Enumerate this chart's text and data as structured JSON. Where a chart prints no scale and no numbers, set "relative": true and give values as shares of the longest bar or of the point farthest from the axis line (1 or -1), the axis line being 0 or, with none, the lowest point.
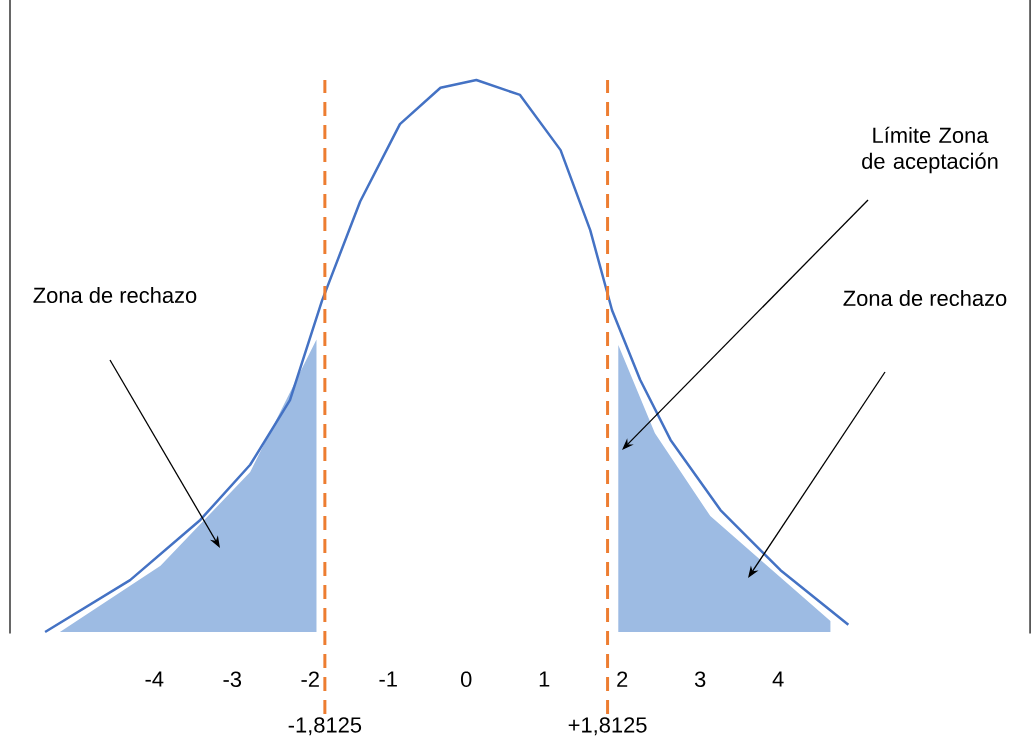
{
  "chart_data": {
    "type": "line",
    "relative": true,
    "xlim": [
      -5.85,
      7.23
    ],
    "xticks": [
      -4,
      -3,
      -2,
      -1,
      0,
      1,
      2,
      3,
      4
    ],
    "marker": "none",
    "series": [
      {
        "type": "area",
        "color": "#9dbbe3",
        "x": [
          -5.21,
          -3.92,
          -2.77,
          -1.92,
          -1.92
        ],
        "values": [
          0,
          0.12,
          0.29,
          0.53,
          0
        ]
      },
      {
        "type": "area",
        "color": "#9dbbe3",
        "x": [
          1.95,
          1.95,
          2.42,
          3.13,
          4.67
        ],
        "values": [
          0,
          0.52,
          0.36,
          0.21,
          0.02
        ]
      },
      {
        "color": "#4472c4",
        "line_style": "solid",
        "x": [
          -5.4,
          -4.31,
          -3.41,
          -2.77,
          -2.26,
          -1.85,
          -1.36,
          -0.85,
          -0.33,
          0.13,
          0.69,
          1.21,
          1.59,
          1.87,
          2.23,
          2.62,
          3.26,
          4.03,
          4.9
        ],
        "values": [
          0,
          0.094,
          0.203,
          0.303,
          0.42,
          0.6,
          0.78,
          0.92,
          0.986,
          1,
          0.973,
          0.873,
          0.728,
          0.583,
          0.457,
          0.348,
          0.221,
          0.112,
          0.013
        ]
      }
    ],
    "ref_lines": [
      {
        "axis": "x",
        "value": -1.8125,
        "label": "-1,8125",
        "color": "#ed7d31",
        "line_style": "dashed"
      },
      {
        "axis": "x",
        "value": 1.8125,
        "label": "+1,8125",
        "color": "#ed7d31",
        "line_style": "dashed"
      }
    ],
    "annotations": [
      "Zona de rechazo",
      "Límite Zona de aceptación",
      "Zona de rechazo"
    ]
  }
}
